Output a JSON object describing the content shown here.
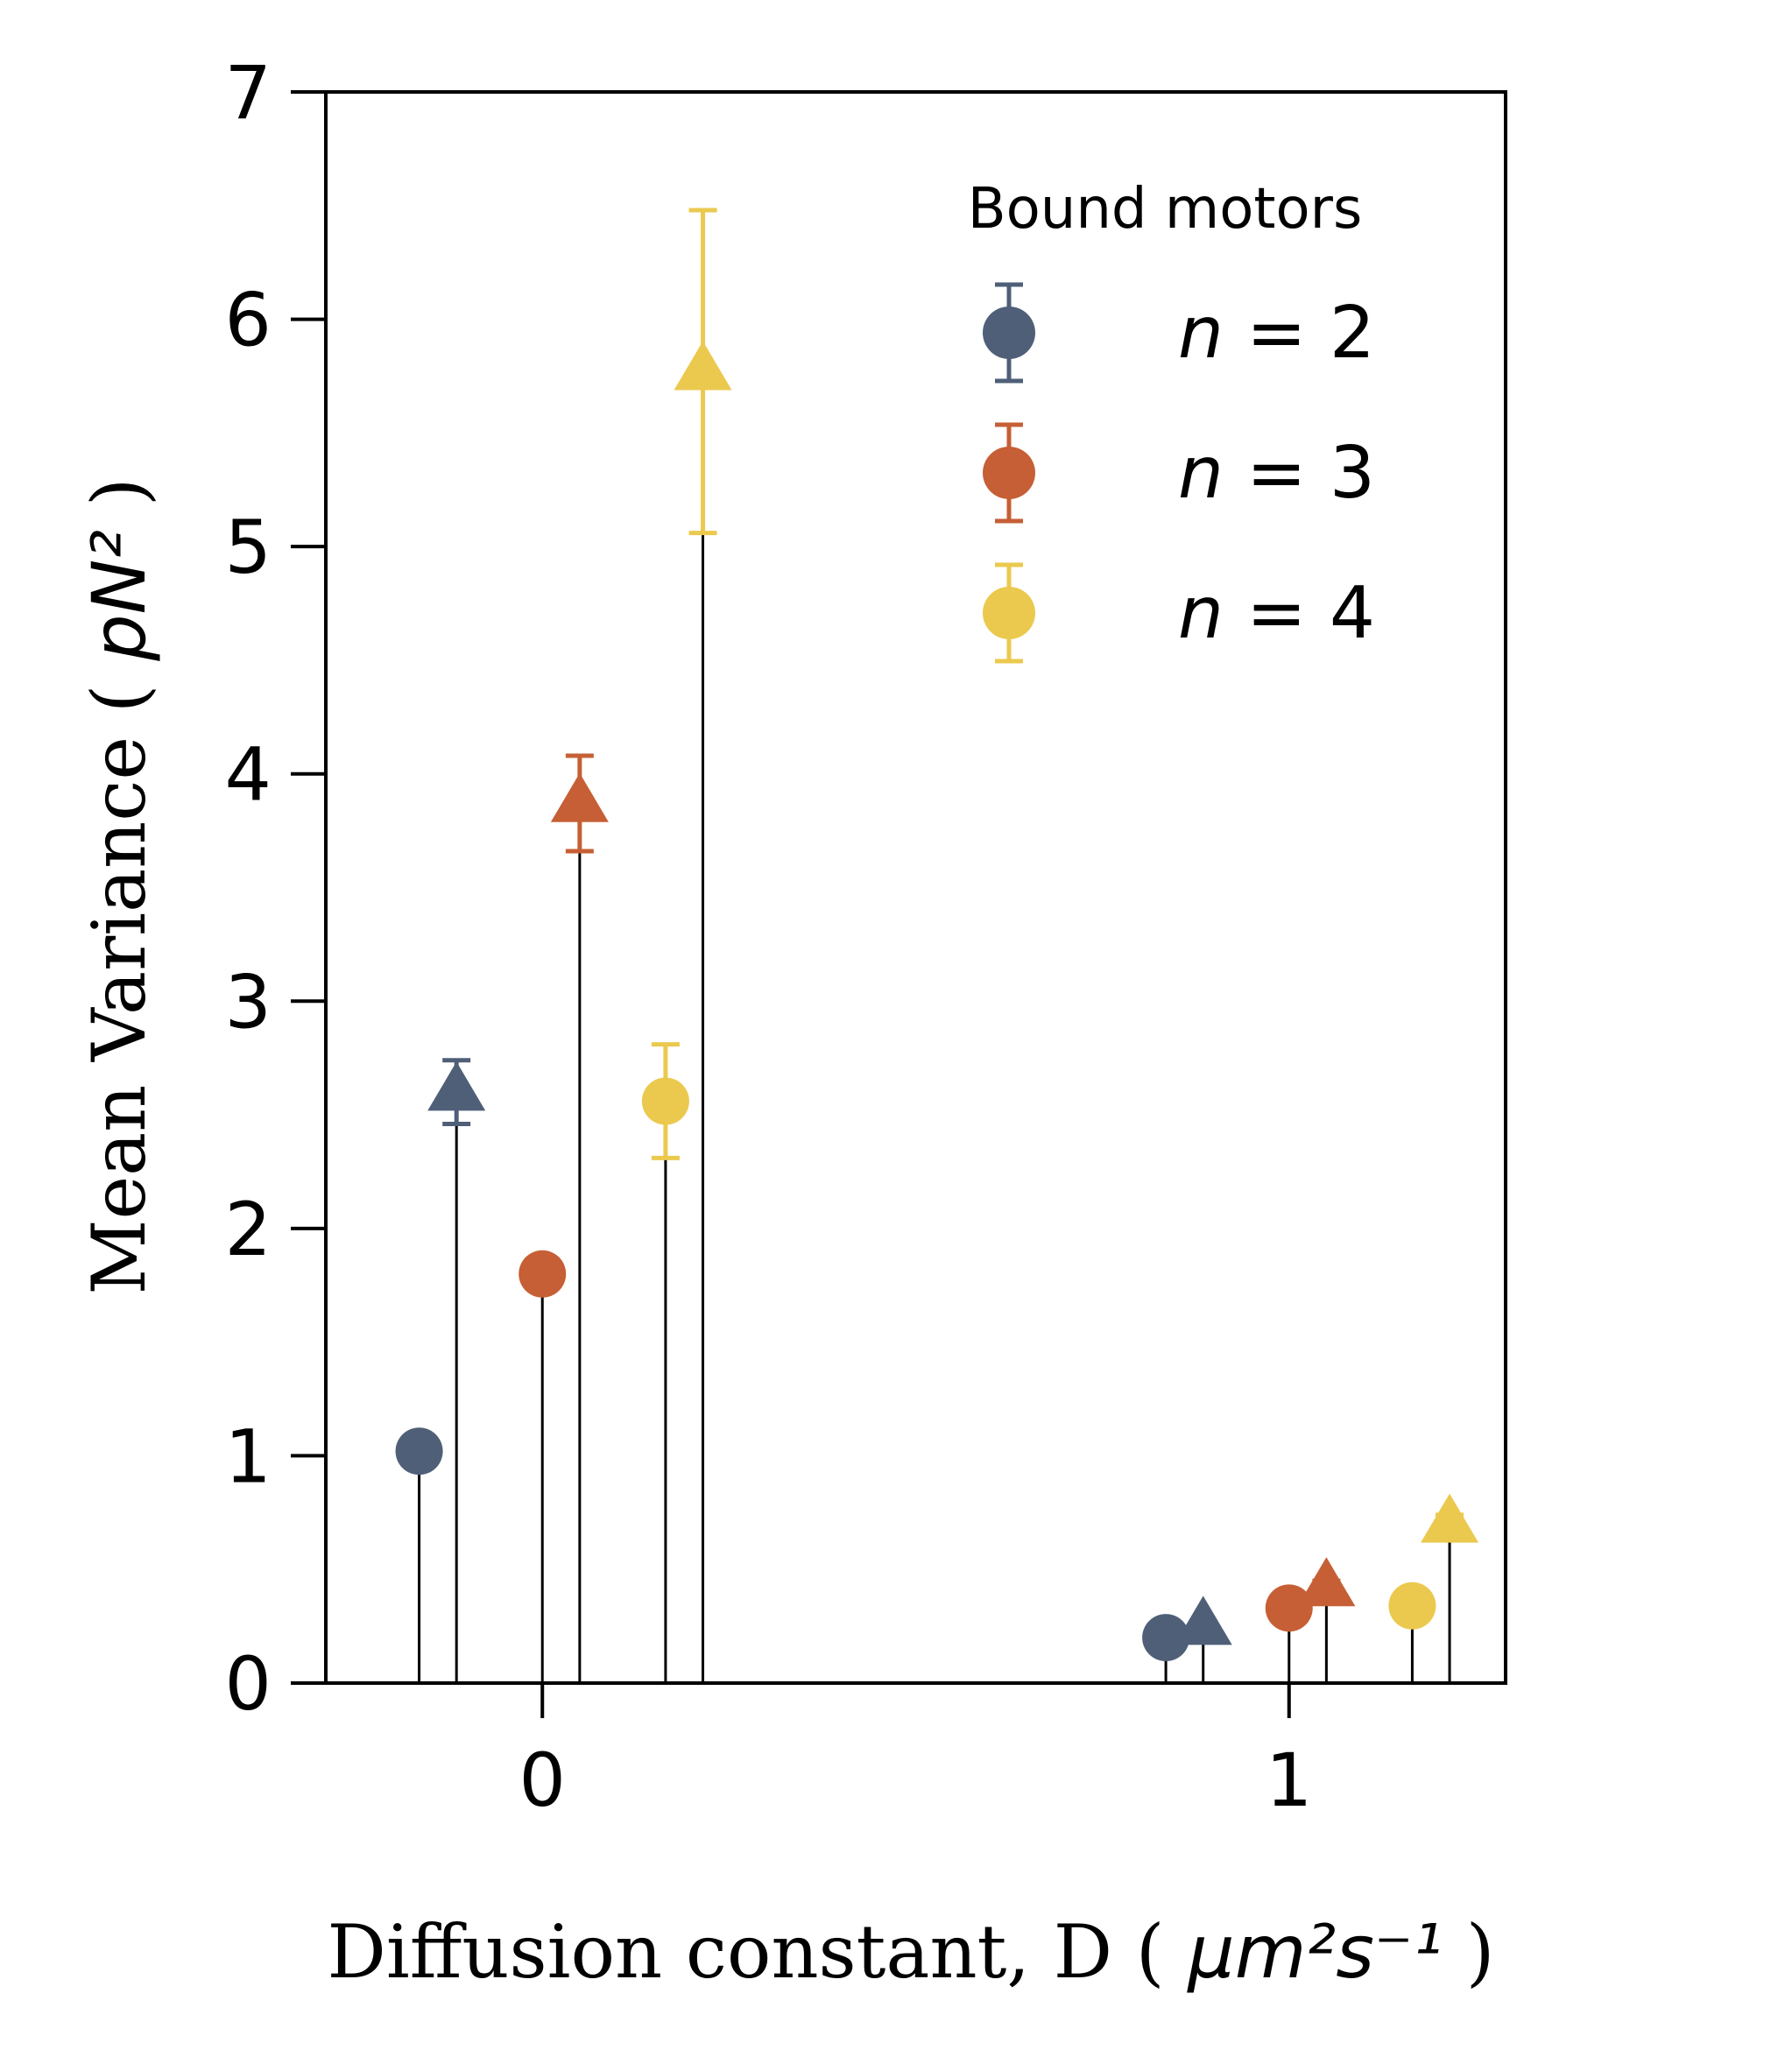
{
  "chart_data": {
    "type": "scatter",
    "xlabel_text": "Diffusion constant, D (",
    "xlabel_unit": "μm²s⁻¹",
    "xlabel_close": ")",
    "ylabel_text": "Mean Variance (",
    "ylabel_unit": "pN²",
    "ylabel_close": ")",
    "xlim": [
      -0.29,
      1.29
    ],
    "ylim": [
      0,
      7
    ],
    "xticks": [
      0,
      1
    ],
    "xtick_labels": [
      "0",
      "1"
    ],
    "yticks": [
      0,
      1,
      2,
      3,
      4,
      5,
      6,
      7
    ],
    "ytick_labels": [
      "0",
      "1",
      "2",
      "3",
      "4",
      "5",
      "6",
      "7"
    ],
    "grid": false,
    "legend": {
      "title": "Bound motors",
      "placement": "top-right",
      "entries": [
        {
          "prefix": "n",
          "suffix": " = 2",
          "color": "#4f5f78"
        },
        {
          "prefix": "n",
          "suffix": " = 3",
          "color": "#c65f35"
        },
        {
          "prefix": "n",
          "suffix": " = 4",
          "color": "#ebc94e"
        }
      ]
    },
    "series": [
      {
        "color": "#4f5f78",
        "circles": [
          {
            "x": -0.165,
            "y": 1.02,
            "err": 0
          },
          {
            "x": 0.835,
            "y": 0.2,
            "err": 0
          }
        ],
        "triangles": [
          {
            "x": -0.115,
            "y": 2.6,
            "err": 0.14
          },
          {
            "x": 0.885,
            "y": 0.25,
            "err": 0.02
          }
        ]
      },
      {
        "color": "#c65f35",
        "circles": [
          {
            "x": 0.0,
            "y": 1.8,
            "err": 0
          },
          {
            "x": 1.0,
            "y": 0.33,
            "err": 0
          }
        ],
        "triangles": [
          {
            "x": 0.05,
            "y": 3.87,
            "err": 0.21
          },
          {
            "x": 1.05,
            "y": 0.42,
            "err": 0.03
          }
        ]
      },
      {
        "color": "#ebc94e",
        "circles": [
          {
            "x": 0.165,
            "y": 2.56,
            "err": 0.25
          },
          {
            "x": 1.165,
            "y": 0.34,
            "err": 0
          }
        ],
        "triangles": [
          {
            "x": 0.215,
            "y": 5.77,
            "err": 0.71
          },
          {
            "x": 1.215,
            "y": 0.7,
            "err": 0.04
          }
        ]
      }
    ]
  }
}
